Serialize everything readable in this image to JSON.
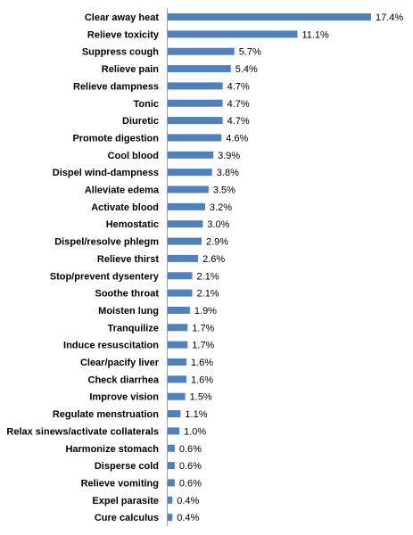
{
  "chart_data": {
    "type": "bar",
    "orientation": "horizontal",
    "categories": [
      "Clear away heat",
      "Relieve toxicity",
      "Suppress cough",
      "Relieve pain",
      "Relieve dampness",
      "Tonic",
      "Diuretic",
      "Promote digestion",
      "Cool blood",
      "Dispel wind-dampness",
      "Alleviate edema",
      "Activate blood",
      "Hemostatic",
      "Dispel/resolve phlegm",
      "Relieve thirst",
      "Stop/prevent dysentery",
      "Soothe throat",
      "Moisten lung",
      "Tranquilize",
      "Induce resuscitation",
      "Clear/pacify liver",
      "Check diarrhea",
      "Improve vision",
      "Regulate menstruation",
      "Relax sinews/activate collaterals",
      "Harmonize stomach",
      "Disperse cold",
      "Relieve vomiting",
      "Expel parasite",
      "Cure calculus"
    ],
    "values": [
      17.4,
      11.1,
      5.7,
      5.4,
      4.7,
      4.7,
      4.7,
      4.6,
      3.9,
      3.8,
      3.5,
      3.2,
      3.0,
      2.9,
      2.6,
      2.1,
      2.1,
      1.9,
      1.7,
      1.7,
      1.6,
      1.6,
      1.5,
      1.1,
      1.0,
      0.6,
      0.6,
      0.6,
      0.4,
      0.4
    ],
    "value_labels": [
      "17.4%",
      "11.1%",
      "5.7%",
      "5.4%",
      "4.7%",
      "4.7%",
      "4.7%",
      "4.6%",
      "3.9%",
      "3.8%",
      "3.5%",
      "3.2%",
      "3.0%",
      "2.9%",
      "2.6%",
      "2.1%",
      "2.1%",
      "1.9%",
      "1.7%",
      "1.7%",
      "1.6%",
      "1.6%",
      "1.5%",
      "1.1%",
      "1.0%",
      "0.6%",
      "0.6%",
      "0.6%",
      "0.4%",
      "0.4%"
    ],
    "unit": "%",
    "xlim": [
      0,
      17.4
    ],
    "grid": false,
    "legend": "none",
    "bar_color": "#4f81bd",
    "axis_color": "#a0a0a0"
  }
}
